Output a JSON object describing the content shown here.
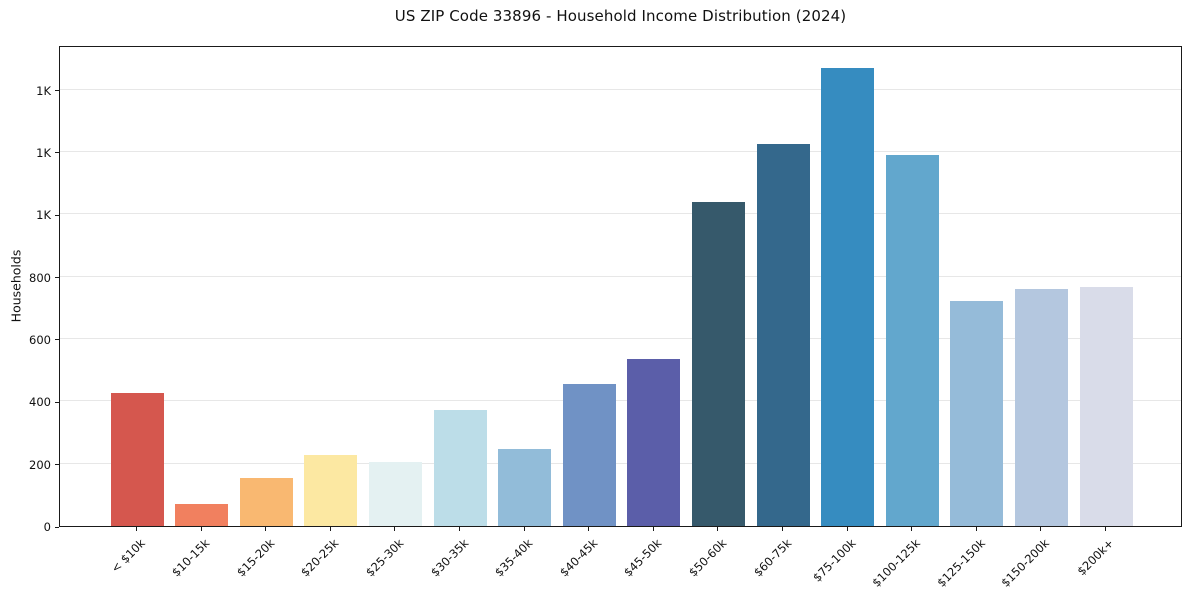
{
  "figure": {
    "title": "US ZIP Code 33896 - Household Income Distribution (2024)"
  },
  "chart_data": {
    "type": "bar",
    "title": "US ZIP Code 33896 - Household Income Distribution (2024)",
    "xlabel": "",
    "ylabel": "Households",
    "categories": [
      "< $10k",
      "$10-15k",
      "$15-20k",
      "$20-25k",
      "$25-30k",
      "$30-35k",
      "$35-40k",
      "$40-45k",
      "$45-50k",
      "$50-60k",
      "$60-75k",
      "$75-100k",
      "$100-125k",
      "$125-150k",
      "$150-200k",
      "$200k+"
    ],
    "values": [
      428,
      70,
      155,
      228,
      204,
      371,
      247,
      457,
      537,
      1038,
      1227,
      1470,
      1190,
      723,
      761,
      766
    ],
    "bar_colors": [
      "#d5574e",
      "#f1805f",
      "#f9b871",
      "#fce8a2",
      "#e4f1f2",
      "#bcdde8",
      "#92bcd9",
      "#7092c5",
      "#5b5ea9",
      "#36596b",
      "#34688c",
      "#368cc0",
      "#62a7cd",
      "#95bbd9",
      "#b4c7df",
      "#d9dce9"
    ],
    "ylim": [
      0,
      1543
    ],
    "yticks": {
      "values": [
        0,
        200,
        400,
        600,
        800,
        1000,
        1200,
        1400
      ],
      "labels": [
        "0",
        "200",
        "400",
        "600",
        "800",
        "1K",
        "1K",
        "1K"
      ]
    },
    "grid": "horizontal",
    "grid_color": "#e7e7e7",
    "axis_color": "#1a1a1a",
    "background": "#ffffff",
    "legend": "none",
    "x_tick_rotation_deg": 45
  }
}
